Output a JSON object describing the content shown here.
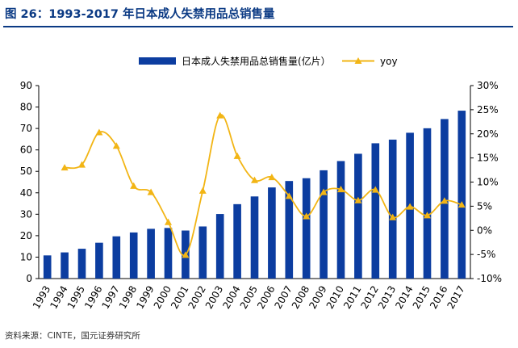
{
  "figure": {
    "title": "图 26：1993-2017 年日本成人失禁用品总销售量",
    "source": "资料来源：CINTE，国元证券研究所"
  },
  "chart_data": {
    "type": "bar",
    "categories": [
      "1993",
      "1994",
      "1995",
      "1996",
      "1997",
      "1998",
      "1999",
      "2000",
      "2001",
      "2002",
      "2003",
      "2004",
      "2005",
      "2006",
      "2007",
      "2008",
      "2009",
      "2010",
      "2011",
      "2012",
      "2013",
      "2014",
      "2015",
      "2016",
      "2017"
    ],
    "series": [
      {
        "name": "日本成人失禁用品总销售量(亿片）",
        "type": "bar",
        "axis": "left",
        "color": "#0c3da0",
        "values": [
          10.8,
          12.2,
          13.9,
          16.7,
          19.7,
          21.5,
          23.2,
          23.6,
          22.4,
          24.3,
          30.1,
          34.7,
          38.3,
          42.5,
          45.5,
          46.8,
          50.5,
          54.8,
          58.2,
          63.1,
          64.8,
          68.0,
          70.1,
          74.4,
          78.3
        ]
      },
      {
        "name": "yoy",
        "type": "line",
        "axis": "right",
        "color": "#f2b515",
        "x": [
          "1994",
          "1995",
          "1996",
          "1997",
          "1998",
          "1999",
          "2000",
          "2001",
          "2002",
          "2003",
          "2004",
          "2005",
          "2006",
          "2007",
          "2008",
          "2009",
          "2010",
          "2011",
          "2012",
          "2013",
          "2014",
          "2015",
          "2016",
          "2017"
        ],
        "values": [
          13.0,
          13.6,
          20.3,
          17.5,
          9.2,
          7.9,
          1.7,
          -5.1,
          8.2,
          23.8,
          15.4,
          10.4,
          11.0,
          7.1,
          2.9,
          7.9,
          8.5,
          6.2,
          8.4,
          2.7,
          4.9,
          3.1,
          6.1,
          5.3
        ]
      }
    ],
    "y_left": {
      "ylim": [
        0,
        90
      ],
      "ticks": [
        "0",
        "10",
        "20",
        "30",
        "40",
        "50",
        "60",
        "70",
        "80",
        "90"
      ]
    },
    "y_right": {
      "ylim": [
        -10,
        30
      ],
      "ticks": [
        "-10%",
        "-5%",
        "0%",
        "5%",
        "10%",
        "15%",
        "20%",
        "25%",
        "30%"
      ]
    },
    "grid": false,
    "legend_position": "top-center"
  }
}
